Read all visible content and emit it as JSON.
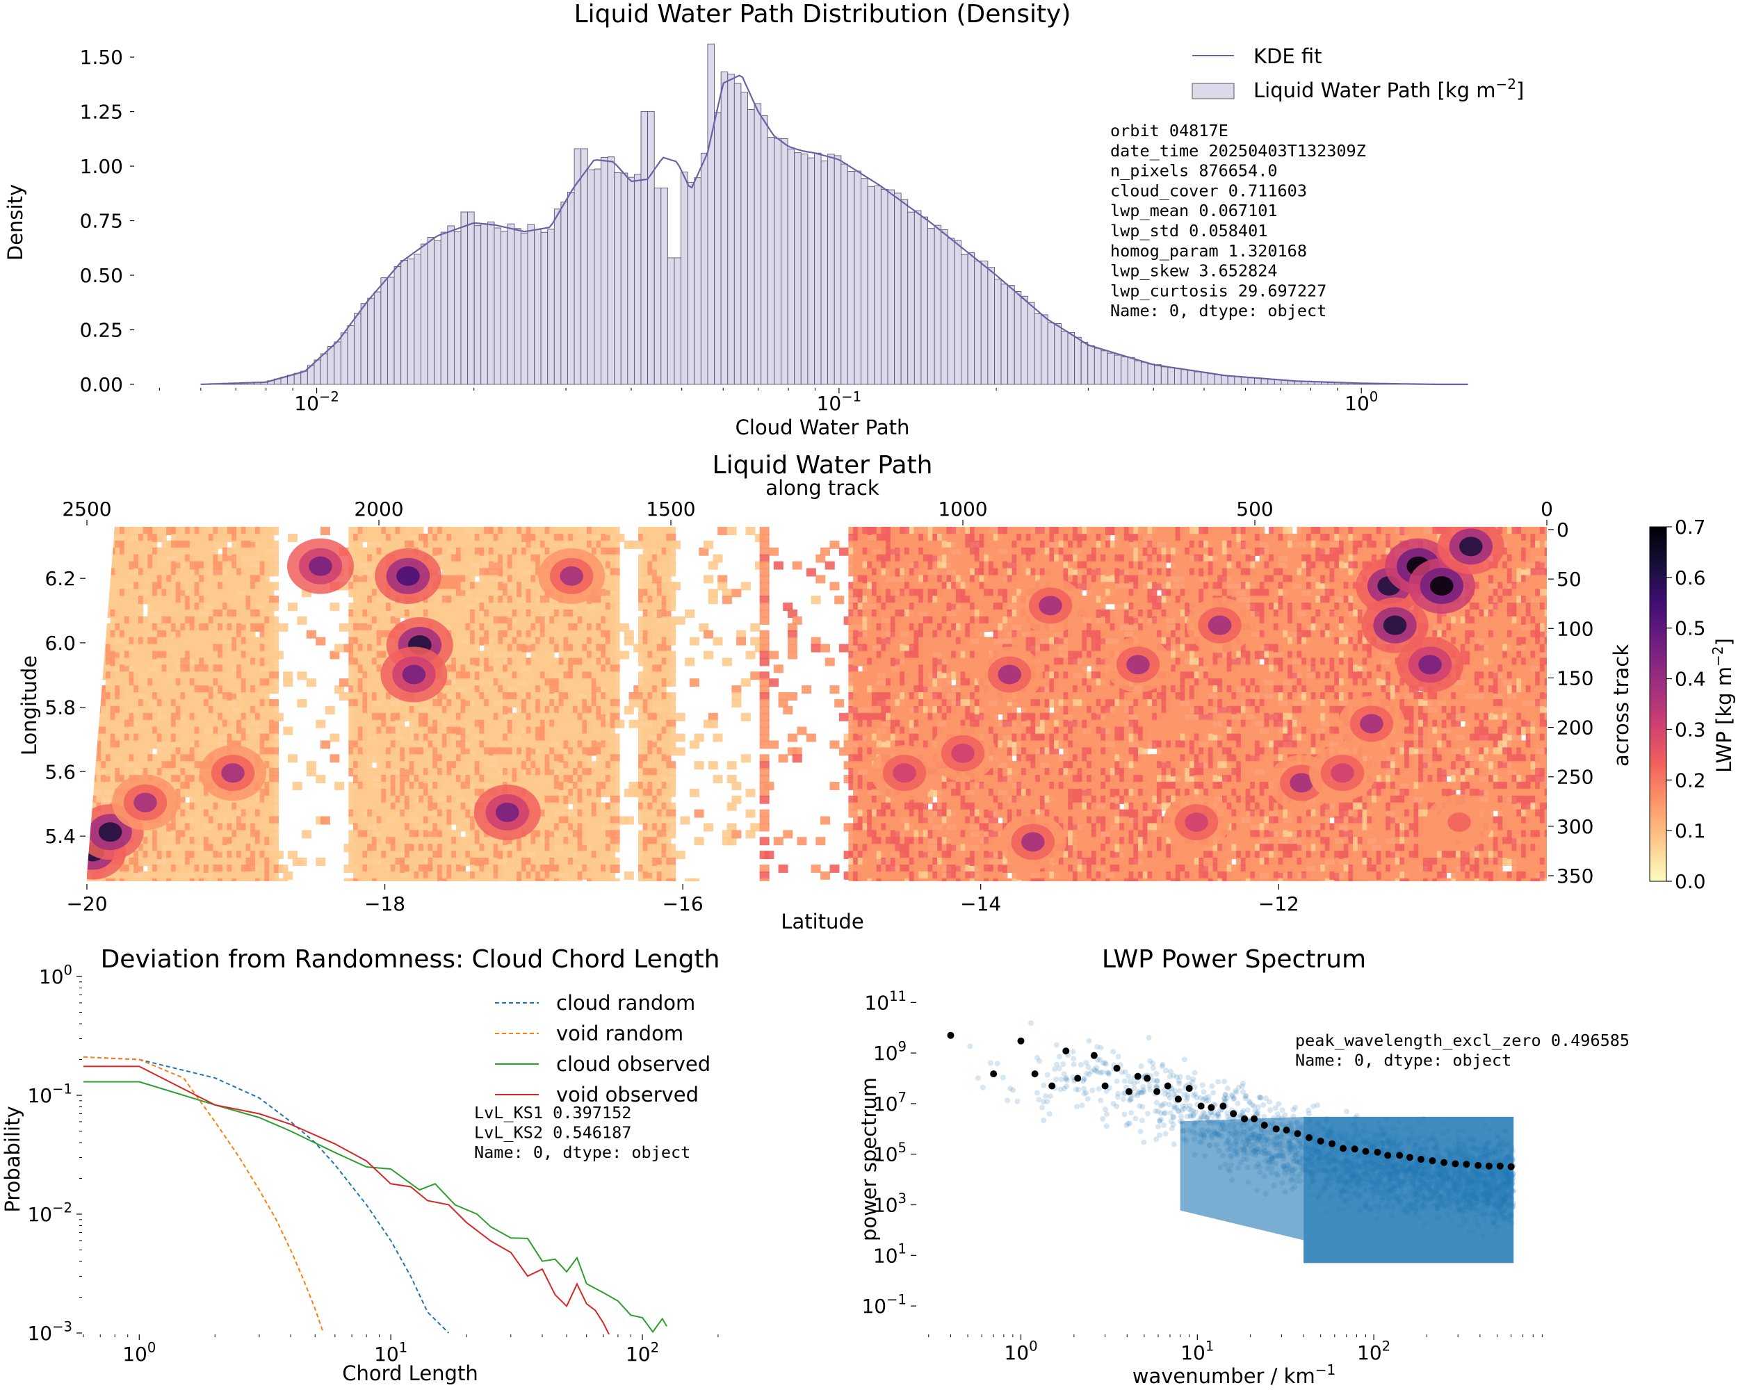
{
  "chart_data": [
    {
      "type": "histogram",
      "title": "Liquid Water Path Distribution (Density)",
      "xlabel": "Cloud Water Path",
      "ylabel": "Density",
      "xscale": "log",
      "xlim": [
        0.0045,
        1.8
      ],
      "ylim": [
        0,
        1.58
      ],
      "xtick_labels": [
        "10^-2",
        "10^-1",
        "10^0"
      ],
      "xtick_values": [
        0.01,
        0.1,
        1
      ],
      "ytick_labels": [
        "0.00",
        "0.25",
        "0.50",
        "0.75",
        "1.00",
        "1.25",
        "1.50"
      ],
      "ytick_values": [
        0,
        0.25,
        0.5,
        0.75,
        1.0,
        1.25,
        1.5
      ],
      "hist_range": [
        0.006,
        1.6
      ],
      "kde": {
        "name": "KDE fit",
        "x": [
          0.006,
          0.008,
          0.0095,
          0.011,
          0.0125,
          0.0145,
          0.017,
          0.02,
          0.022,
          0.025,
          0.028,
          0.031,
          0.034,
          0.037,
          0.04,
          0.043,
          0.046,
          0.049,
          0.052,
          0.056,
          0.06,
          0.065,
          0.07,
          0.075,
          0.08,
          0.085,
          0.09,
          0.1,
          0.12,
          0.15,
          0.2,
          0.25,
          0.3,
          0.4,
          0.55,
          0.75,
          1.0,
          1.4,
          1.6
        ],
        "y": [
          0.0,
          0.01,
          0.06,
          0.2,
          0.38,
          0.56,
          0.68,
          0.74,
          0.73,
          0.7,
          0.72,
          0.9,
          1.03,
          1.02,
          0.93,
          0.94,
          1.04,
          1.02,
          0.89,
          1.06,
          1.38,
          1.42,
          1.25,
          1.14,
          1.09,
          1.07,
          1.06,
          1.03,
          0.91,
          0.74,
          0.5,
          0.3,
          0.18,
          0.09,
          0.04,
          0.015,
          0.005,
          0.0,
          0.0
        ]
      },
      "spikes": [
        [
          0.0565,
          1.56
        ],
        [
          0.043,
          1.25
        ],
        [
          0.032,
          1.08
        ],
        [
          0.0195,
          0.79
        ],
        [
          0.0475,
          0.56
        ],
        [
          0.0485,
          0.58
        ],
        [
          0.0455,
          0.9
        ],
        [
          0.0682,
          1.26
        ],
        [
          0.091,
          1.06
        ]
      ],
      "series": [
        {
          "name": "KDE fit",
          "color": "#6b62a5"
        },
        {
          "name": "Liquid Water Path [kg m^-2]",
          "color": "#dcdaea"
        }
      ],
      "legend_items": [
        {
          "label": "KDE fit",
          "unit": ""
        },
        {
          "label": "Liquid Water Path [kg m",
          "unit": "−2",
          "suffix": "]"
        }
      ],
      "stats_text": [
        "orbit             04817E",
        "date_time       20250403T132309Z",
        "n_pixels          876654.0",
        "cloud_cover          0.711603",
        "lwp_mean             0.067101",
        "lwp_std            0.058401",
        "homog_param          1.320168",
        "lwp_skew           3.652824",
        "lwp_curtosis         29.697227",
        "Name: 0, dtype: object"
      ]
    },
    {
      "type": "heatmap",
      "title": "Liquid Water Path",
      "top_axis_label": "along track",
      "top_tick_labels": [
        "2500",
        "2000",
        "1500",
        "1000",
        "500",
        "0"
      ],
      "top_tick_values": [
        2500,
        2000,
        1500,
        1000,
        500,
        0
      ],
      "xlabel": "Latitude",
      "xtick_labels": [
        "−20",
        "−18",
        "−16",
        "−14",
        "−12"
      ],
      "xtick_values": [
        -20,
        -18,
        -16,
        -14,
        -12
      ],
      "xlim": [
        -20,
        -10.2
      ],
      "ylabel": "Longitude",
      "ytick_labels": [
        "5.4",
        "5.6",
        "5.8",
        "6.0",
        "6.2"
      ],
      "ytick_values": [
        5.4,
        5.6,
        5.8,
        6.0,
        6.2
      ],
      "ylim": [
        5.26,
        6.36
      ],
      "right_axis_label": "across track",
      "right_tick_labels": [
        "0",
        "50",
        "100",
        "150",
        "200",
        "250",
        "300",
        "350"
      ],
      "right_tick_values": [
        0,
        50,
        100,
        150,
        200,
        250,
        300,
        350
      ],
      "colorbar_label": "LWP [kg m",
      "colorbar_unit": "−2",
      "colorbar_suffix": "]",
      "colorbar_range": [
        0.0,
        0.7
      ],
      "colorbar_tick_labels": [
        "0.0",
        "0.1",
        "0.2",
        "0.3",
        "0.4",
        "0.5",
        "0.6",
        "0.7"
      ],
      "colorbar_tick_values": [
        0.0,
        0.1,
        0.2,
        0.3,
        0.4,
        0.5,
        0.6,
        0.7
      ],
      "colormap": [
        "#fcfdbf",
        "#feca8d",
        "#fd9668",
        "#f1605d",
        "#cd4071",
        "#9e2f7f",
        "#721f81",
        "#440f76",
        "#180f3d",
        "#000004"
      ],
      "clear_sky_bands": [
        [
          2060,
          2180
        ],
        [
          1350,
          1440
        ],
        [
          1200,
          1340
        ],
        [
          1440,
          1500
        ],
        [
          1560,
          1600
        ]
      ],
      "hotspots": [
        [
          2490,
          330,
          0.55
        ],
        [
          2460,
          310,
          0.55
        ],
        [
          2100,
          40,
          0.45
        ],
        [
          1950,
          50,
          0.5
        ],
        [
          1930,
          120,
          0.55
        ],
        [
          1940,
          150,
          0.45
        ],
        [
          1780,
          290,
          0.45
        ],
        [
          1670,
          50,
          0.3
        ],
        [
          920,
          150,
          0.35
        ],
        [
          850,
          80,
          0.3
        ],
        [
          700,
          140,
          0.32
        ],
        [
          560,
          100,
          0.3
        ],
        [
          270,
          60,
          0.6
        ],
        [
          220,
          40,
          0.65
        ],
        [
          260,
          100,
          0.55
        ],
        [
          200,
          140,
          0.45
        ],
        [
          180,
          60,
          0.7
        ],
        [
          130,
          20,
          0.55
        ],
        [
          300,
          200,
          0.3
        ],
        [
          420,
          260,
          0.3
        ],
        [
          600,
          300,
          0.28
        ],
        [
          880,
          320,
          0.3
        ],
        [
          1100,
          250,
          0.25
        ],
        [
          2250,
          250,
          0.3
        ],
        [
          2400,
          280,
          0.32
        ],
        [
          1000,
          230,
          0.25
        ],
        [
          350,
          250,
          0.28
        ],
        [
          150,
          300,
          0.22
        ]
      ]
    },
    {
      "type": "line",
      "title": "Deviation from Randomness: Cloud Chord Length",
      "xlabel": "Chord Length",
      "ylabel": "Probability",
      "xscale": "log",
      "yscale": "log",
      "xlim": [
        0.6,
        250
      ],
      "ylim": [
        0.001,
        1.0
      ],
      "xtick_labels": [
        "10^0",
        "10^1",
        "10^2"
      ],
      "xtick_values": [
        1,
        10,
        100
      ],
      "ytick_labels": [
        "10^-3",
        "10^-2",
        "10^-1",
        "10^0"
      ],
      "ytick_values": [
        0.001,
        0.01,
        0.1,
        1
      ],
      "series": [
        {
          "name": "cloud random",
          "color": "#1f77b4",
          "dash": true,
          "x": [
            0.6,
            1,
            2,
            3,
            4,
            5,
            6,
            8,
            10,
            12,
            14,
            17
          ],
          "y": [
            0.21,
            0.2,
            0.14,
            0.095,
            0.06,
            0.04,
            0.026,
            0.012,
            0.006,
            0.003,
            0.0015,
            0.001
          ]
        },
        {
          "name": "void random",
          "color": "#ff7f0e",
          "dash": true,
          "x": [
            0.6,
            1,
            1.5,
            2,
            2.5,
            3,
            3.5,
            4,
            4.5,
            5,
            5.4
          ],
          "y": [
            0.21,
            0.2,
            0.14,
            0.06,
            0.03,
            0.016,
            0.009,
            0.005,
            0.0028,
            0.0016,
            0.001
          ]
        },
        {
          "name": "cloud observed",
          "color": "#2ca02c",
          "dash": false,
          "x": [
            0.6,
            1,
            2,
            3,
            4,
            6,
            8,
            10,
            13,
            15,
            18,
            22,
            25,
            30,
            35,
            40,
            45,
            50,
            55,
            60,
            70,
            80,
            90,
            100,
            110,
            120,
            125
          ],
          "y": [
            0.13,
            0.13,
            0.083,
            0.065,
            0.05,
            0.033,
            0.025,
            0.024,
            0.016,
            0.018,
            0.012,
            0.011,
            0.0085,
            0.0065,
            0.0055,
            0.0042,
            0.0045,
            0.0032,
            0.0038,
            0.0028,
            0.0022,
            0.0017,
            0.0015,
            0.0012,
            0.0011,
            0.0013,
            0.001
          ]
        },
        {
          "name": "void observed",
          "color": "#d62728",
          "dash": false,
          "x": [
            0.6,
            1,
            2,
            3,
            4,
            6,
            8,
            10,
            12,
            14,
            17,
            20,
            25,
            30,
            35,
            40,
            45,
            50,
            55,
            60,
            65,
            70,
            75
          ],
          "y": [
            0.175,
            0.175,
            0.083,
            0.07,
            0.057,
            0.039,
            0.028,
            0.018,
            0.017,
            0.013,
            0.012,
            0.0085,
            0.0065,
            0.005,
            0.0035,
            0.003,
            0.0025,
            0.002,
            0.0022,
            0.0016,
            0.0014,
            0.0012,
            0.001
          ]
        }
      ],
      "stats_text": [
        "LvL_KS1     0.397152",
        "LvL_KS2     0.546187",
        "Name: 0, dtype: object"
      ]
    },
    {
      "type": "scatter",
      "title": "LWP Power Spectrum",
      "xlabel": "wavenumber / km",
      "xlabel_unit": "−1",
      "ylabel": "power spectrum",
      "xscale": "log",
      "yscale": "log",
      "xlim": [
        0.26,
        1200
      ],
      "ylim": [
        0.004,
        2000000000000.0
      ],
      "xtick_labels": [
        "10^0",
        "10^1",
        "10^2"
      ],
      "xtick_values": [
        1,
        10,
        100
      ],
      "ytick_labels": [
        "10^-1",
        "10^1",
        "10^3",
        "10^5",
        "10^7",
        "10^9",
        "10^11"
      ],
      "ytick_values": [
        0.1,
        10,
        1000,
        100000,
        10000000,
        1000000000,
        100000000000
      ],
      "cloud_color": "#1f77b4",
      "binned_color": "#000000",
      "binned_points": {
        "x": [
          0.4,
          0.7,
          1.0,
          1.2,
          1.5,
          1.8,
          2.1,
          2.6,
          3.0,
          3.5,
          4.1,
          4.6,
          5.2,
          5.9,
          6.8,
          7.8,
          9.0,
          10.5,
          12,
          14,
          16,
          18.5,
          21,
          24,
          28,
          32,
          37,
          43,
          50,
          58,
          67,
          78,
          90,
          105,
          120,
          140,
          160,
          185,
          215,
          250,
          290,
          335,
          390,
          450,
          520,
          600
        ],
        "y": [
          5000000000.0,
          150000000.0,
          3000000000.0,
          150000000.0,
          50000000.0,
          1200000000.0,
          100000000.0,
          800000000.0,
          50000000.0,
          250000000.0,
          30000000.0,
          120000000.0,
          100000000.0,
          30000000.0,
          50000000.0,
          15000000.0,
          40000000.0,
          8000000.0,
          7000000.0,
          8000000.0,
          4000000.0,
          2500000.0,
          2500000.0,
          1400000.0,
          1000000.0,
          900000.0,
          650000.0,
          450000.0,
          330000.0,
          260000.0,
          170000.0,
          160000.0,
          130000.0,
          120000.0,
          90000.0,
          90000.0,
          75000.0,
          63000.0,
          55000.0,
          47000.0,
          42000.0,
          40000.0,
          36000.0,
          34000.0,
          34000.0,
          32000.0
        ]
      },
      "stats_text": [
        "peak_wavelength_excl_zero    0.496585",
        "Name: 0, dtype: object"
      ]
    }
  ]
}
